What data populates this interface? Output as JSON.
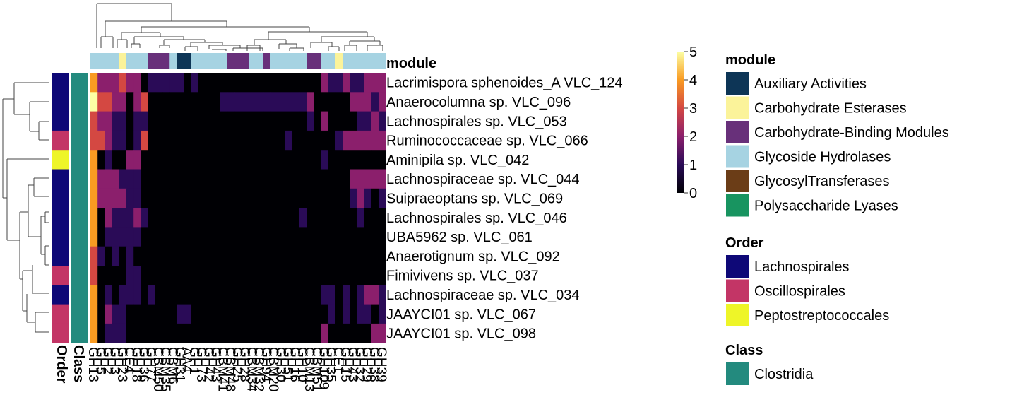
{
  "chart_data": {
    "type": "heatmap",
    "column_annotation_title": "module",
    "row_annotation_titles": [
      "Order",
      "Class"
    ],
    "rows": [
      "Lacrimispora sphenoides_A VLC_124",
      "Anaerocolumna sp. VLC_096",
      "Lachnospirales sp. VLC_053",
      "Ruminococcaceae sp. VLC_066",
      "Aminipila sp. VLC_042",
      "Lachnospiraceae sp. VLC_044",
      "Suipraeoptans sp. VLC_069",
      "Lachnospirales sp. VLC_046",
      "UBA5962 sp. VLC_061",
      "Anaerotignum sp. VLC_092",
      "Fimivivens sp. VLC_037",
      "Lachnospiraceae sp. VLC_034",
      "JAAYCI01 sp. VLC_067",
      "JAAYCI01 sp. VLC_098"
    ],
    "row_order": [
      "Lachnospirales",
      "Lachnospirales",
      "Lachnospirales",
      "Oscillospirales",
      "Peptostreptococcales",
      "Lachnospirales",
      "Lachnospirales",
      "Lachnospirales",
      "Lachnospirales",
      "Lachnospirales",
      "Oscillospirales",
      "Lachnospirales",
      "Oscillospirales",
      "Oscillospirales"
    ],
    "row_class": [
      "Clostridia",
      "Clostridia",
      "Clostridia",
      "Clostridia",
      "Clostridia",
      "Clostridia",
      "Clostridia",
      "Clostridia",
      "Clostridia",
      "Clostridia",
      "Clostridia",
      "Clostridia",
      "Clostridia",
      "Clostridia"
    ],
    "columns": [
      "GH13",
      "GH5",
      "GH2",
      "GH3",
      "GH23",
      "CE4",
      "GH18",
      "GH36",
      "GH77",
      "CBM50",
      "CBM35",
      "CBM6",
      "GH31",
      "AA4",
      "GH1",
      "GH73",
      "GH42",
      "GH43",
      "CBM41",
      "CBM48",
      "GH25",
      "GH28",
      "CBM34",
      "CBM32",
      "GH94",
      "CBM20",
      "GH30",
      "GH51",
      "GH16",
      "GH10",
      "CBM13",
      "CBM51",
      "GH109",
      "GH35",
      "CE1",
      "GH15",
      "GH43",
      "GH32",
      "GH29",
      "GH38",
      "GH39"
    ],
    "column_module": [
      "Glycoside Hydrolases",
      "Glycoside Hydrolases",
      "Glycoside Hydrolases",
      "Glycoside Hydrolases",
      "Carbohydrate Esterases",
      "Glycoside Hydrolases",
      "Glycoside Hydrolases",
      "Glycoside Hydrolases",
      "Carbohydrate-Binding Modules",
      "Carbohydrate-Binding Modules",
      "Carbohydrate-Binding Modules",
      "Glycoside Hydrolases",
      "Auxiliary Activities",
      "Auxiliary Activities",
      "Glycoside Hydrolases",
      "Glycoside Hydrolases",
      "Glycoside Hydrolases",
      "Glycoside Hydrolases",
      "Glycoside Hydrolases",
      "Carbohydrate-Binding Modules",
      "Carbohydrate-Binding Modules",
      "Carbohydrate-Binding Modules",
      "Glycoside Hydrolases",
      "Glycoside Hydrolases",
      "Carbohydrate-Binding Modules",
      "Glycoside Hydrolases",
      "Glycoside Hydrolases",
      "Glycoside Hydrolases",
      "Glycoside Hydrolases",
      "Glycoside Hydrolases",
      "Carbohydrate-Binding Modules",
      "Carbohydrate-Binding Modules",
      "Glycoside Hydrolases",
      "Glycoside Hydrolases",
      "Carbohydrate Esterases",
      "Glycoside Hydrolases",
      "Glycoside Hydrolases",
      "Glycoside Hydrolases",
      "Glycoside Hydrolases",
      "Glycoside Hydrolases",
      "Glycoside Hydrolases"
    ],
    "values": [
      [
        4,
        2,
        2,
        2,
        3,
        2,
        2,
        0,
        1,
        1,
        1,
        1,
        1,
        0,
        1,
        0,
        0,
        0,
        0,
        0,
        0,
        0,
        0,
        0,
        0,
        0,
        0,
        0,
        0,
        0,
        0,
        0,
        2,
        1,
        1,
        2,
        1,
        1,
        2,
        2,
        2
      ],
      [
        5,
        3,
        3,
        2,
        2,
        0,
        2,
        3,
        0,
        0,
        0,
        0,
        0,
        0,
        0,
        0,
        0,
        0,
        1,
        1,
        1,
        1,
        1,
        1,
        1,
        1,
        1,
        1,
        1,
        1,
        2,
        0,
        0,
        0,
        0,
        0,
        2,
        2,
        2,
        1,
        2
      ],
      [
        3,
        2,
        2,
        1,
        1,
        0,
        1,
        1,
        0,
        0,
        0,
        0,
        0,
        0,
        0,
        0,
        0,
        0,
        0,
        0,
        0,
        0,
        0,
        0,
        0,
        0,
        0,
        0,
        0,
        0,
        1,
        0,
        2,
        0,
        0,
        0,
        0,
        1,
        1,
        2,
        1
      ],
      [
        3,
        3,
        2,
        1,
        1,
        0,
        1,
        3,
        0,
        0,
        0,
        0,
        0,
        0,
        0,
        0,
        0,
        0,
        0,
        0,
        0,
        0,
        0,
        0,
        0,
        0,
        0,
        1,
        0,
        0,
        0,
        0,
        0,
        0,
        1,
        2,
        2,
        2,
        2,
        2,
        2
      ],
      [
        4,
        0,
        1,
        0,
        0,
        2,
        2,
        0,
        0,
        0,
        0,
        0,
        0,
        0,
        0,
        0,
        0,
        0,
        0,
        0,
        0,
        0,
        0,
        0,
        0,
        0,
        0,
        0,
        0,
        0,
        0,
        0,
        1,
        0,
        0,
        0,
        0,
        0,
        0,
        0,
        0
      ],
      [
        4,
        2,
        2,
        2,
        1,
        1,
        1,
        0,
        0,
        0,
        0,
        0,
        0,
        0,
        0,
        0,
        0,
        0,
        0,
        0,
        0,
        0,
        0,
        0,
        0,
        0,
        0,
        0,
        0,
        0,
        0,
        0,
        0,
        0,
        0,
        0,
        2,
        2,
        2,
        2,
        2
      ],
      [
        4,
        2,
        2,
        2,
        2,
        1,
        1,
        0,
        0,
        0,
        0,
        0,
        0,
        0,
        0,
        0,
        0,
        0,
        0,
        0,
        0,
        0,
        0,
        0,
        0,
        0,
        0,
        0,
        0,
        0,
        0,
        0,
        0,
        0,
        0,
        0,
        1,
        2,
        1,
        0,
        1
      ],
      [
        4,
        0,
        2,
        1,
        1,
        1,
        2,
        1,
        0,
        0,
        0,
        0,
        0,
        0,
        0,
        0,
        0,
        0,
        0,
        0,
        0,
        0,
        0,
        0,
        0,
        0,
        0,
        0,
        0,
        1,
        0,
        0,
        0,
        0,
        0,
        0,
        0,
        1,
        0,
        0,
        0
      ],
      [
        4,
        0,
        1,
        1,
        1,
        1,
        1,
        0,
        0,
        0,
        0,
        0,
        0,
        0,
        0,
        0,
        0,
        0,
        0,
        0,
        0,
        0,
        0,
        0,
        0,
        0,
        0,
        0,
        0,
        0,
        0,
        0,
        0,
        0,
        0,
        0,
        0,
        0,
        0,
        0,
        0
      ],
      [
        3,
        1,
        0,
        1,
        0,
        1,
        0,
        0,
        0,
        0,
        0,
        0,
        0,
        0,
        0,
        0,
        0,
        0,
        0,
        0,
        0,
        0,
        0,
        0,
        0,
        0,
        0,
        0,
        0,
        0,
        0,
        0,
        0,
        0,
        0,
        0,
        0,
        0,
        0,
        0,
        0
      ],
      [
        3,
        0,
        0,
        0,
        0,
        1,
        1,
        0,
        0,
        0,
        0,
        0,
        0,
        0,
        0,
        0,
        0,
        0,
        0,
        0,
        0,
        0,
        0,
        0,
        0,
        0,
        0,
        0,
        0,
        0,
        0,
        0,
        0,
        0,
        0,
        0,
        0,
        0,
        0,
        0,
        0
      ],
      [
        4,
        0,
        1,
        0,
        1,
        1,
        1,
        0,
        1,
        0,
        0,
        0,
        0,
        0,
        0,
        0,
        0,
        0,
        0,
        0,
        0,
        0,
        0,
        0,
        0,
        0,
        0,
        0,
        0,
        0,
        0,
        0,
        1,
        1,
        0,
        1,
        0,
        1,
        2,
        2,
        1
      ],
      [
        4,
        0,
        2,
        1,
        1,
        0,
        0,
        0,
        0,
        0,
        0,
        0,
        1,
        1,
        0,
        0,
        0,
        0,
        0,
        0,
        0,
        0,
        0,
        0,
        0,
        0,
        0,
        0,
        0,
        0,
        0,
        0,
        0,
        1,
        0,
        1,
        0,
        1,
        1,
        0,
        1
      ],
      [
        4,
        0,
        1,
        1,
        1,
        0,
        0,
        0,
        0,
        0,
        0,
        0,
        0,
        0,
        0,
        0,
        0,
        0,
        0,
        0,
        0,
        0,
        0,
        0,
        0,
        0,
        0,
        0,
        0,
        0,
        0,
        0,
        2,
        0,
        0,
        0,
        0,
        0,
        0,
        2,
        2
      ]
    ],
    "colorbar": {
      "range": [
        0,
        5
      ],
      "ticks": [
        0,
        1,
        2,
        3,
        4,
        5
      ]
    },
    "legends": [
      {
        "title": "module",
        "entries": [
          {
            "label": "Auxiliary Activities",
            "color": "#0d3556"
          },
          {
            "label": "Carbohydrate Esterases",
            "color": "#fbf39a"
          },
          {
            "label": "Carbohydrate-Binding Modules",
            "color": "#68307a"
          },
          {
            "label": "Glycoside Hydrolases",
            "color": "#a6d3e2"
          },
          {
            "label": "GlycosylTransferases",
            "color": "#6b3d17"
          },
          {
            "label": "Polysaccharide Lyases",
            "color": "#189460"
          }
        ]
      },
      {
        "title": "Order",
        "entries": [
          {
            "label": "Lachnospirales",
            "color": "#0e0877"
          },
          {
            "label": "Oscillospirales",
            "color": "#c33566"
          },
          {
            "label": "Peptostreptococcales",
            "color": "#eef528"
          }
        ]
      },
      {
        "title": "Class",
        "entries": [
          {
            "label": "Clostridia",
            "color": "#238a7e"
          }
        ]
      }
    ]
  }
}
